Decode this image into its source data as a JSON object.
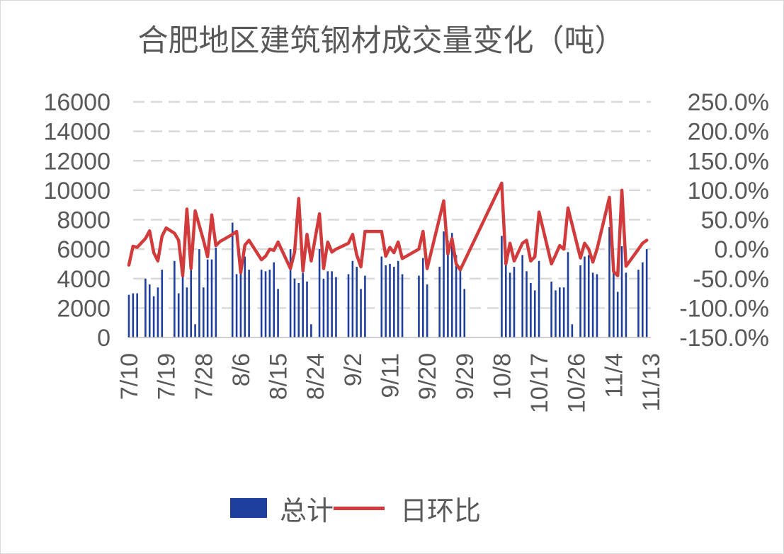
{
  "chart_data": {
    "type": "bar+line",
    "title": "合肥地区建筑钢材成交量变化（吨）",
    "left_axis": {
      "ylim": [
        0,
        16000
      ],
      "ticks": [
        "0",
        "2000",
        "4000",
        "6000",
        "8000",
        "10000",
        "12000",
        "14000",
        "16000"
      ]
    },
    "right_axis": {
      "ylim": [
        -150,
        250
      ],
      "ticks": [
        "-150.0%",
        "-100.0%",
        "-50.0%",
        "0.0%",
        "50.0%",
        "100.0%",
        "150.0%",
        "200.0%",
        "250.0%"
      ]
    },
    "x_tick_labels": [
      "7/10",
      "7/19",
      "7/28",
      "8/6",
      "8/15",
      "8/24",
      "9/2",
      "9/11",
      "9/20",
      "9/29",
      "10/8",
      "10/17",
      "10/26",
      "11/4",
      "11/13"
    ],
    "grid": true,
    "legend_position": "bottom",
    "series": [
      {
        "name": "总计",
        "type": "bar",
        "color": "#1f3f9c",
        "points": [
          [
            "7/10",
            2900
          ],
          [
            "7/11",
            3000
          ],
          [
            "7/12",
            3000
          ],
          [
            "7/14",
            4000
          ],
          [
            "7/15",
            3600
          ],
          [
            "7/16",
            2800
          ],
          [
            "7/17",
            3400
          ],
          [
            "7/18",
            4600
          ],
          [
            "7/21",
            5200
          ],
          [
            "7/22",
            3000
          ],
          [
            "7/23",
            5000
          ],
          [
            "7/24",
            3400
          ],
          [
            "7/25",
            5500
          ],
          [
            "7/26",
            900
          ],
          [
            "7/27",
            6000
          ],
          [
            "7/28",
            3400
          ],
          [
            "7/29",
            5300
          ],
          [
            "7/30",
            5300
          ],
          [
            "7/31",
            6100
          ],
          [
            "8/4",
            7800
          ],
          [
            "8/5",
            4300
          ],
          [
            "8/6",
            4800
          ],
          [
            "8/7",
            5500
          ],
          [
            "8/8",
            4600
          ],
          [
            "8/11",
            4600
          ],
          [
            "8/12",
            4500
          ],
          [
            "8/13",
            4600
          ],
          [
            "8/14",
            5100
          ],
          [
            "8/15",
            3300
          ],
          [
            "8/18",
            6000
          ],
          [
            "8/19",
            4000
          ],
          [
            "8/20",
            3700
          ],
          [
            "8/21",
            4400
          ],
          [
            "8/22",
            3800
          ],
          [
            "8/23",
            900
          ],
          [
            "8/25",
            6000
          ],
          [
            "8/26",
            4000
          ],
          [
            "8/27",
            4500
          ],
          [
            "8/28",
            4500
          ],
          [
            "8/29",
            4100
          ],
          [
            "9/1",
            4300
          ],
          [
            "9/2",
            5200
          ],
          [
            "9/3",
            4800
          ],
          [
            "9/4",
            3300
          ],
          [
            "9/5",
            4200
          ],
          [
            "9/9",
            5500
          ],
          [
            "9/10",
            4900
          ],
          [
            "9/11",
            5000
          ],
          [
            "9/12",
            4800
          ],
          [
            "9/13",
            5200
          ],
          [
            "9/14",
            4300
          ],
          [
            "9/18",
            4200
          ],
          [
            "9/19",
            5400
          ],
          [
            "9/20",
            3600
          ],
          [
            "9/23",
            4800
          ],
          [
            "9/24",
            7200
          ],
          [
            "9/25",
            6600
          ],
          [
            "9/26",
            7100
          ],
          [
            "9/27",
            5600
          ],
          [
            "9/28",
            4700
          ],
          [
            "9/29",
            3300
          ],
          [
            "10/8",
            6900
          ],
          [
            "10/9",
            5500
          ],
          [
            "10/10",
            4400
          ],
          [
            "10/11",
            4800
          ],
          [
            "10/13",
            5600
          ],
          [
            "10/14",
            4500
          ],
          [
            "10/15",
            3700
          ],
          [
            "10/16",
            3200
          ],
          [
            "10/17",
            5200
          ],
          [
            "10/20",
            3800
          ],
          [
            "10/21",
            3200
          ],
          [
            "10/22",
            3400
          ],
          [
            "10/23",
            3400
          ],
          [
            "10/24",
            5800
          ],
          [
            "10/25",
            900
          ],
          [
            "10/27",
            4900
          ],
          [
            "10/28",
            5500
          ],
          [
            "10/29",
            5600
          ],
          [
            "10/30",
            4400
          ],
          [
            "10/31",
            4300
          ],
          [
            "11/3",
            7500
          ],
          [
            "11/4",
            4500
          ],
          [
            "11/5",
            3100
          ],
          [
            "11/6",
            6200
          ],
          [
            "11/7",
            4400
          ],
          [
            "11/10",
            4600
          ],
          [
            "11/11",
            5100
          ],
          [
            "11/12",
            6000
          ]
        ]
      },
      {
        "name": "日环比",
        "type": "line",
        "axis": "right",
        "color": "#d13b3b",
        "points": [
          [
            "7/10",
            -27
          ],
          [
            "7/11",
            5
          ],
          [
            "7/12",
            3
          ],
          [
            "7/14",
            18
          ],
          [
            "7/15",
            31
          ],
          [
            "7/16",
            -6
          ],
          [
            "7/17",
            -20
          ],
          [
            "7/18",
            22
          ],
          [
            "7/19",
            36
          ],
          [
            "7/21",
            27
          ],
          [
            "7/22",
            15
          ],
          [
            "7/23",
            -45
          ],
          [
            "7/24",
            68
          ],
          [
            "7/25",
            -33
          ],
          [
            "7/26",
            65
          ],
          [
            "7/27",
            40
          ],
          [
            "7/28",
            15
          ],
          [
            "7/29",
            -13
          ],
          [
            "7/30",
            58
          ],
          [
            "7/31",
            6
          ],
          [
            "8/1",
            13
          ],
          [
            "8/4",
            25
          ],
          [
            "8/5",
            30
          ],
          [
            "8/6",
            -40
          ],
          [
            "8/7",
            7
          ],
          [
            "8/8",
            15
          ],
          [
            "8/11",
            -18
          ],
          [
            "8/12",
            -12
          ],
          [
            "8/13",
            0
          ],
          [
            "8/14",
            -2
          ],
          [
            "8/15",
            12
          ],
          [
            "8/18",
            -33
          ],
          [
            "8/19",
            -5
          ],
          [
            "8/20",
            86
          ],
          [
            "8/21",
            -37
          ],
          [
            "8/22",
            25
          ],
          [
            "8/23",
            -20
          ],
          [
            "8/25",
            60
          ],
          [
            "8/26",
            -33
          ],
          [
            "8/27",
            12
          ],
          [
            "8/28",
            -5
          ],
          [
            "8/29",
            0
          ],
          [
            "9/1",
            10
          ],
          [
            "9/2",
            25
          ],
          [
            "9/3",
            -10
          ],
          [
            "9/4",
            -30
          ],
          [
            "9/5",
            30
          ],
          [
            "9/9",
            30
          ],
          [
            "9/10",
            -12
          ],
          [
            "9/11",
            3
          ],
          [
            "9/12",
            -6
          ],
          [
            "9/13",
            12
          ],
          [
            "9/14",
            -16
          ],
          [
            "9/18",
            0
          ],
          [
            "9/19",
            30
          ],
          [
            "9/20",
            -33
          ],
          [
            "9/24",
            82
          ],
          [
            "9/25",
            -8
          ],
          [
            "9/26",
            18
          ],
          [
            "9/27",
            -25
          ],
          [
            "9/28",
            -35
          ],
          [
            "10/8",
            112
          ],
          [
            "10/9",
            -25
          ],
          [
            "10/10",
            10
          ],
          [
            "10/11",
            -20
          ],
          [
            "10/13",
            10
          ],
          [
            "10/14",
            15
          ],
          [
            "10/15",
            -20
          ],
          [
            "10/16",
            -13
          ],
          [
            "10/17",
            63
          ],
          [
            "10/20",
            -25
          ],
          [
            "10/21",
            -10
          ],
          [
            "10/22",
            6
          ],
          [
            "10/23",
            0
          ],
          [
            "10/24",
            70
          ],
          [
            "10/27",
            -15
          ],
          [
            "10/28",
            10
          ],
          [
            "10/29",
            0
          ],
          [
            "10/30",
            -22
          ],
          [
            "10/31",
            0
          ],
          [
            "11/3",
            88
          ],
          [
            "11/4",
            -38
          ],
          [
            "11/5",
            -45
          ],
          [
            "11/6",
            100
          ],
          [
            "11/7",
            -29
          ],
          [
            "11/10",
            0
          ],
          [
            "11/11",
            10
          ],
          [
            "11/12",
            15
          ]
        ]
      }
    ]
  }
}
